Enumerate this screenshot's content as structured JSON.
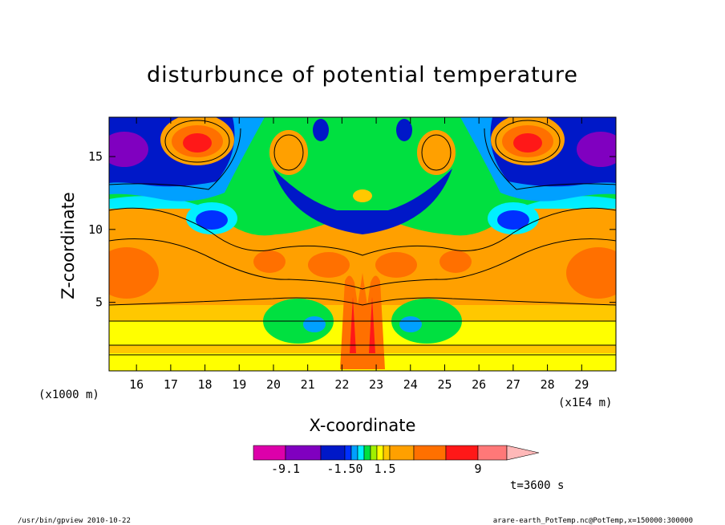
{
  "chart_data": {
    "type": "heatmap",
    "title": "disturbunce of potential temperature",
    "xlabel": "X-coordinate",
    "ylabel": "Z-coordinate",
    "x_unit": "(x1E4 m)",
    "y_unit": "(x1000 m)",
    "xlim": [
      15.2,
      30.0
    ],
    "ylim": [
      0.3,
      17.7
    ],
    "x_ticks": [
      "16",
      "17",
      "18",
      "19",
      "20",
      "21",
      "22",
      "23",
      "24",
      "25",
      "26",
      "27",
      "28",
      "29"
    ],
    "y_ticks": [
      "5",
      "10",
      "15"
    ],
    "colorbar": {
      "colors": [
        "#dd00aa",
        "#8000c0",
        "#0018c8",
        "#0030ff",
        "#00a0ff",
        "#00f0ff",
        "#00e040",
        "#a0f000",
        "#ffff00",
        "#ffc800",
        "#ffa000",
        "#ff7000",
        "#ff1818",
        "#ff7878",
        "#ffb8b8"
      ],
      "tick_labels": [
        "-9.1",
        "-1.50",
        "1.5",
        "9"
      ]
    },
    "time_label": "t=3600 s"
  },
  "footer": {
    "left": "/usr/bin/gpview   2010-10-22",
    "right": "arare-earth_PotTemp.nc@PotTemp,x=150000:300000"
  }
}
